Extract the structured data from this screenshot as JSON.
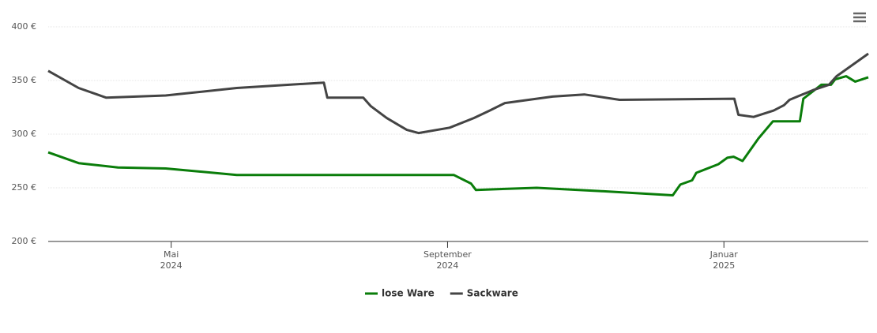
{
  "chart_data": {
    "type": "line",
    "xlim": [
      3.22,
      15.09
    ],
    "xticks": [
      {
        "value": 5,
        "label": "Mai\n2024"
      },
      {
        "value": 9,
        "label": "September\n2024"
      },
      {
        "value": 13,
        "label": "Januar\n2025"
      }
    ],
    "ylim": [
      200,
      400
    ],
    "yticks": [
      {
        "value": 200,
        "label": "200 €"
      },
      {
        "value": 250,
        "label": "250 €"
      },
      {
        "value": 300,
        "label": "300 €"
      },
      {
        "value": 350,
        "label": "350 €"
      },
      {
        "value": 400,
        "label": "400 €"
      }
    ],
    "grid": true,
    "series": [
      {
        "name": "lose Ware",
        "color": "#0a7d0a",
        "x": [
          3.22,
          3.66,
          4.23,
          4.92,
          5.95,
          7.09,
          9.09,
          9.34,
          9.41,
          10.29,
          11.2,
          12.26,
          12.37,
          12.54,
          12.6,
          12.92,
          13.05,
          13.14,
          13.27,
          13.5,
          13.71,
          14.1,
          14.15,
          14.41,
          14.55,
          14.61,
          14.77,
          14.9,
          15.09
        ],
        "values": [
          283,
          273,
          269,
          268,
          262,
          262,
          262,
          254,
          248,
          250,
          247,
          243,
          253,
          257,
          264,
          272,
          278,
          279,
          275,
          296,
          312,
          312,
          333,
          346,
          346,
          351,
          354,
          349,
          353
        ]
      },
      {
        "name": "Sackware",
        "color": "#444444",
        "x": [
          3.22,
          3.66,
          4.06,
          4.92,
          5.95,
          7.21,
          7.26,
          7.78,
          7.89,
          8.12,
          8.41,
          8.58,
          9.03,
          9.38,
          9.61,
          9.83,
          10.52,
          10.98,
          11.49,
          13.15,
          13.21,
          13.43,
          13.72,
          13.87,
          13.95,
          14.29,
          14.52,
          14.63,
          15.09
        ],
        "values": [
          359,
          343,
          334,
          336,
          343,
          348,
          334,
          334,
          326,
          315,
          304,
          301,
          306,
          315,
          322,
          329,
          335,
          337,
          332,
          333,
          318,
          316,
          322,
          327,
          332,
          341,
          346,
          354,
          375
        ]
      }
    ]
  }
}
